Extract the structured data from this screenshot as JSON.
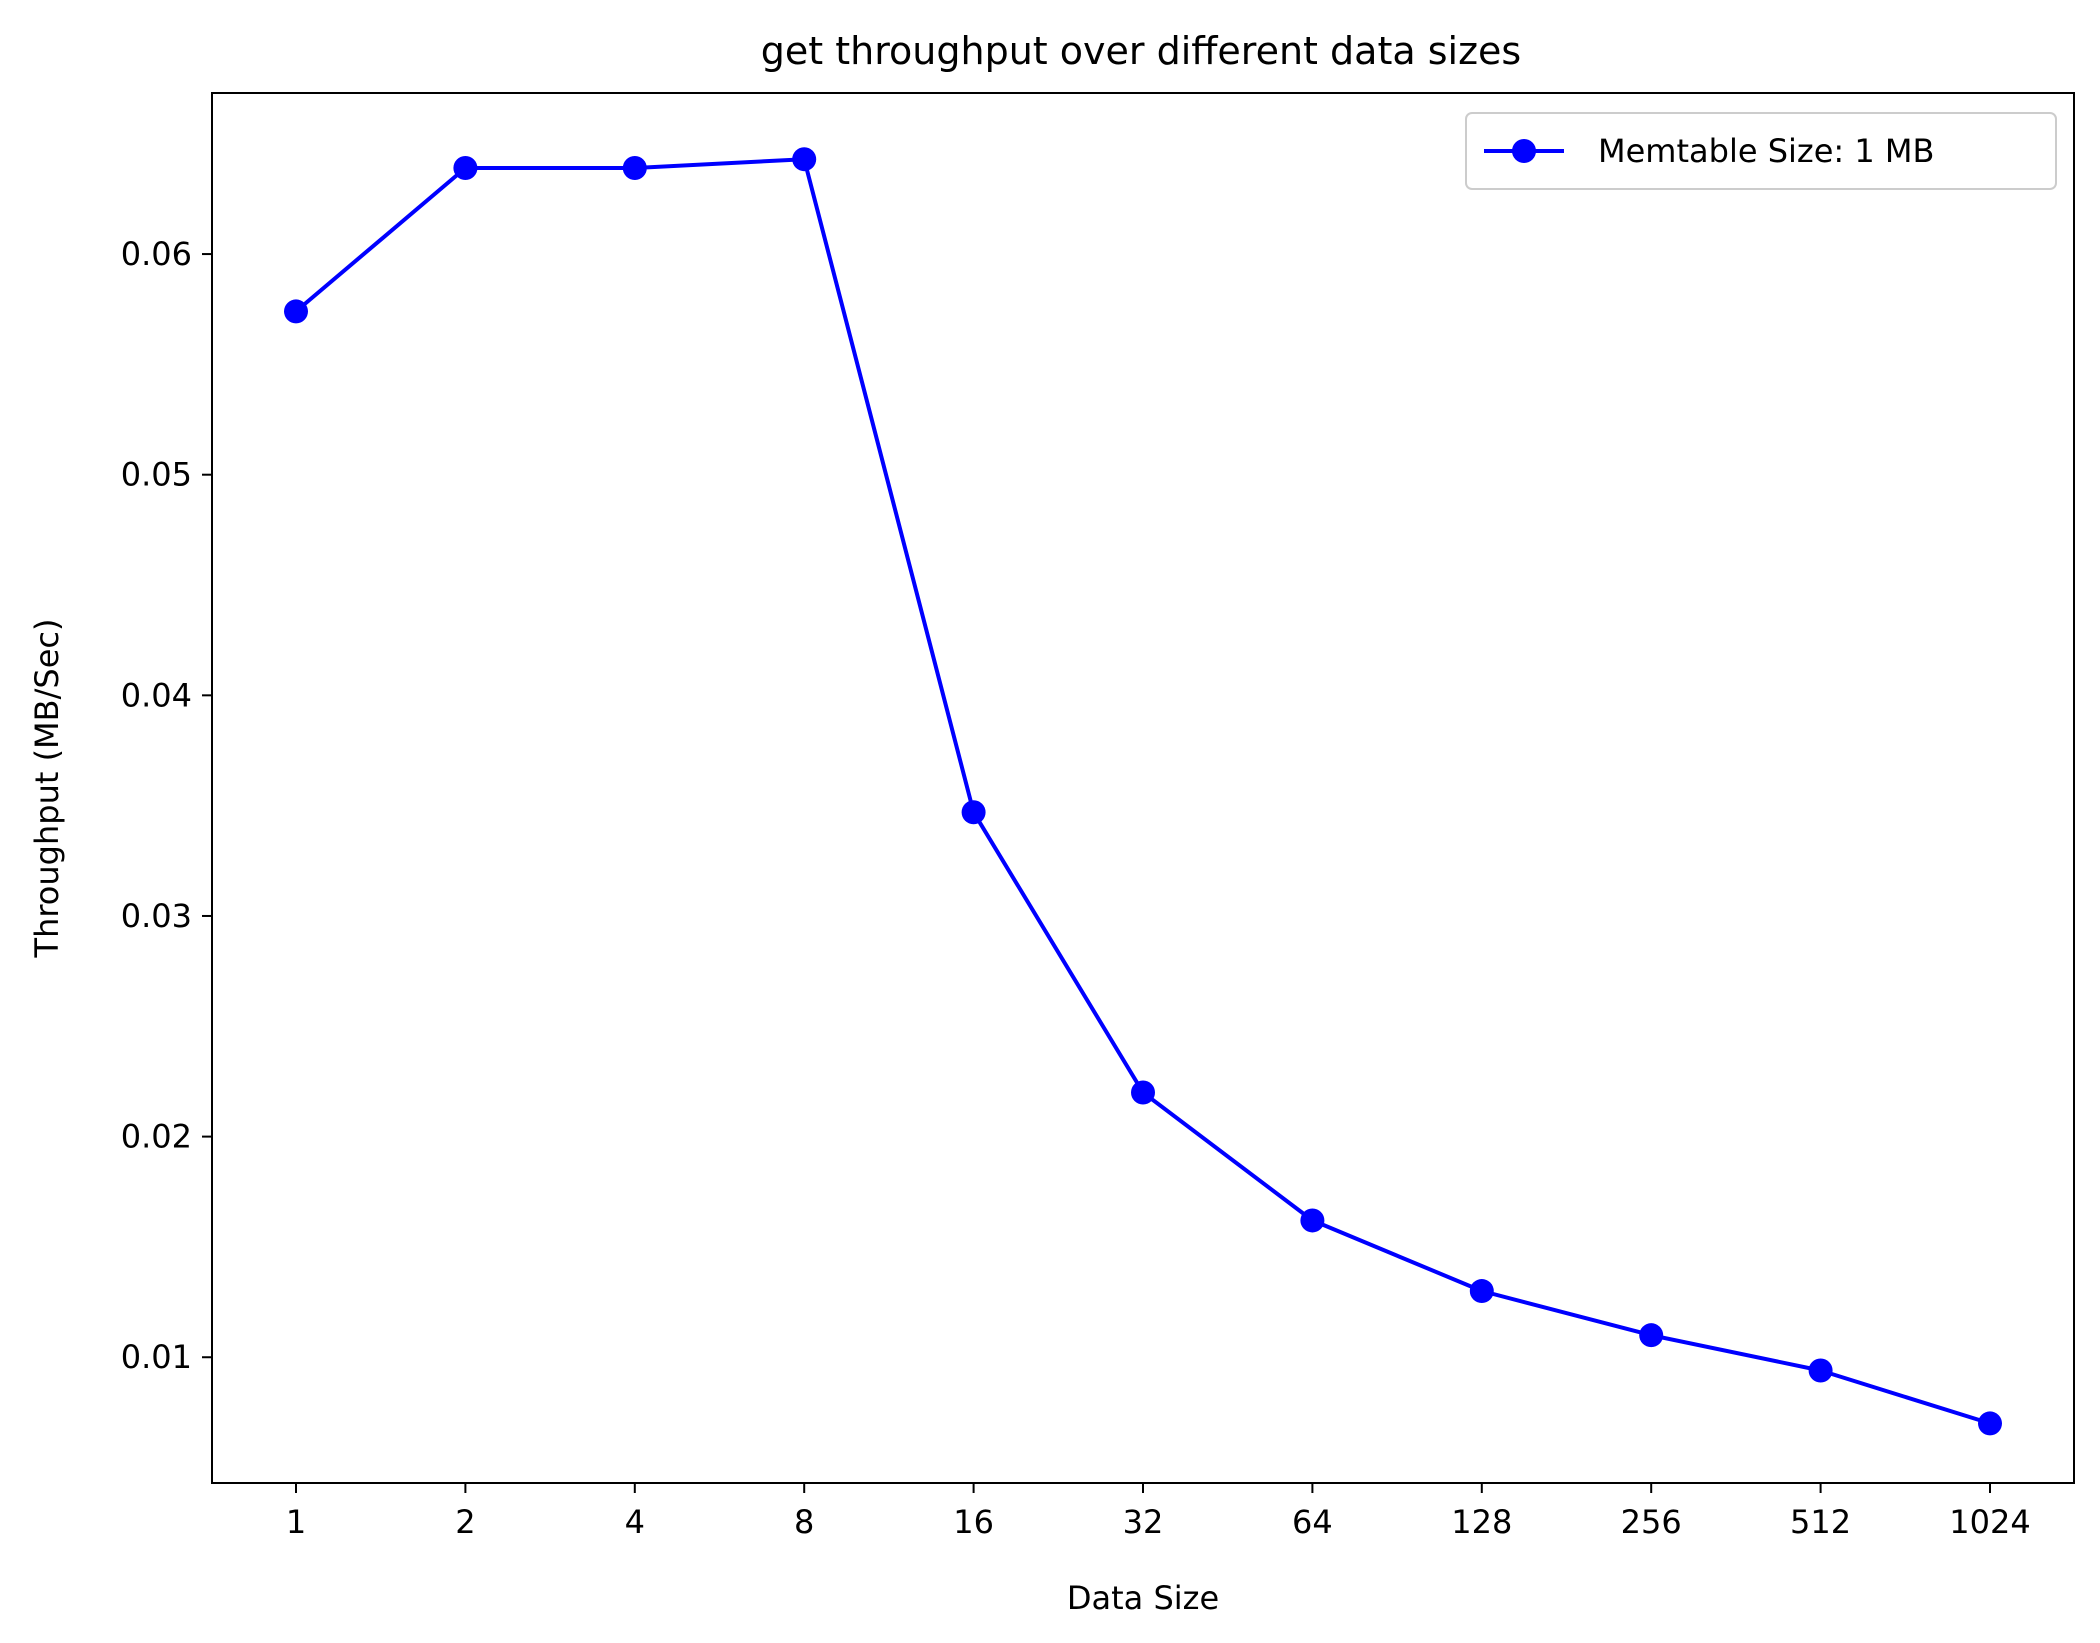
{
  "chart_data": {
    "type": "line",
    "title": "get throughput over different data sizes",
    "xlabel": "Data Size",
    "ylabel": "Throughput (MB/Sec)",
    "x": [
      "1",
      "2",
      "4",
      "8",
      "16",
      "32",
      "64",
      "128",
      "256",
      "512",
      "1024"
    ],
    "x_scale": "categorical",
    "ylim": [
      0.0043,
      0.0673
    ],
    "yticks": [
      "0.01",
      "0.02",
      "0.03",
      "0.04",
      "0.05",
      "0.06"
    ],
    "ytick_values": [
      0.01,
      0.02,
      0.03,
      0.04,
      0.05,
      0.06
    ],
    "grid": false,
    "legend_position": "top-right",
    "series": [
      {
        "name": "Memtable Size: 1 MB",
        "color": "#0000ff",
        "marker": "circle",
        "values": [
          0.0574,
          0.0639,
          0.0639,
          0.0643,
          0.0347,
          0.022,
          0.0162,
          0.013,
          0.011,
          0.0094,
          0.007
        ]
      }
    ]
  }
}
